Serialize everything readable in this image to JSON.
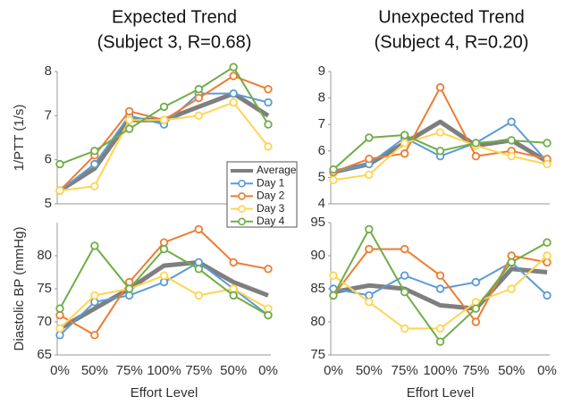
{
  "chart_data": [
    {
      "type": "line",
      "title": "Expected Trend",
      "subtitle": "(Subject 3, R=0.68)",
      "y_label": "1/PTT (1/s)",
      "ylim": [
        5,
        8
      ],
      "yticks": [
        5,
        6,
        7,
        8
      ],
      "legend": "lower right",
      "series": [
        {
          "name": "Average",
          "color": "#7f7f7f",
          "values": [
            5.3,
            5.8,
            6.9,
            6.9,
            7.2,
            7.5,
            7.0
          ]
        },
        {
          "name": "Day 1",
          "color": "#5b9bd5",
          "values": [
            5.3,
            5.9,
            7.0,
            6.8,
            7.5,
            7.5,
            7.3
          ]
        },
        {
          "name": "Day 2",
          "color": "#ed7d31",
          "values": [
            5.3,
            6.1,
            7.1,
            6.9,
            7.4,
            7.9,
            7.6
          ]
        },
        {
          "name": "Day 3",
          "color": "#ffd54f",
          "values": [
            5.3,
            5.4,
            6.9,
            6.9,
            7.0,
            7.3,
            6.3
          ]
        },
        {
          "name": "Day 4",
          "color": "#70ad47",
          "values": [
            5.9,
            6.2,
            6.7,
            7.2,
            7.6,
            8.1,
            6.8
          ]
        }
      ]
    },
    {
      "type": "line",
      "title": "Unexpected Trend",
      "subtitle": "(Subject 4, R=0.20)",
      "ylim": [
        4,
        9
      ],
      "yticks": [
        4,
        5,
        6,
        7,
        8,
        9
      ],
      "series": [
        {
          "color": "#7f7f7f",
          "values": [
            5.2,
            5.5,
            6.3,
            7.1,
            6.2,
            6.4,
            5.6
          ]
        },
        {
          "color": "#5b9bd5",
          "values": [
            5.2,
            5.5,
            6.5,
            5.8,
            6.3,
            7.1,
            5.6
          ]
        },
        {
          "color": "#ed7d31",
          "values": [
            5.2,
            5.7,
            5.9,
            8.4,
            5.8,
            6.0,
            5.7
          ]
        },
        {
          "color": "#ffd54f",
          "values": [
            4.9,
            5.1,
            6.3,
            6.7,
            6.2,
            5.8,
            5.5
          ]
        },
        {
          "color": "#70ad47",
          "values": [
            5.3,
            6.5,
            6.6,
            6.0,
            6.3,
            6.4,
            6.3
          ]
        }
      ]
    },
    {
      "type": "line",
      "y_label": "Diastolic BP (mmHg)",
      "x_label": "Effort Level",
      "categories": [
        "0%",
        "50%",
        "75%",
        "100%",
        "75%",
        "50%",
        "0%"
      ],
      "ylim": [
        65,
        85
      ],
      "yticks": [
        65,
        70,
        75,
        80
      ],
      "series": [
        {
          "color": "#7f7f7f",
          "values": [
            69,
            72,
            75,
            78.5,
            79,
            76,
            74
          ]
        },
        {
          "color": "#5b9bd5",
          "values": [
            68,
            73,
            74,
            76,
            79,
            75,
            71
          ]
        },
        {
          "color": "#ed7d31",
          "values": [
            71,
            68,
            76,
            82,
            84,
            79,
            78
          ]
        },
        {
          "color": "#ffd54f",
          "values": [
            69,
            74,
            75,
            77,
            74,
            75,
            72
          ]
        },
        {
          "color": "#70ad47",
          "values": [
            72,
            81.5,
            75,
            81,
            78,
            74,
            71
          ]
        }
      ]
    },
    {
      "type": "line",
      "x_label": "Effort Level",
      "categories": [
        "0%",
        "50%",
        "75%",
        "100%",
        "75%",
        "50%",
        "0%"
      ],
      "ylim": [
        75,
        95
      ],
      "yticks": [
        75,
        80,
        85,
        90,
        95
      ],
      "series": [
        {
          "color": "#7f7f7f",
          "values": [
            84.5,
            85.5,
            85,
            82.5,
            82,
            88,
            87.5
          ]
        },
        {
          "color": "#5b9bd5",
          "values": [
            85,
            84,
            87,
            85,
            86,
            89,
            84
          ]
        },
        {
          "color": "#ed7d31",
          "values": [
            84,
            91,
            91,
            87,
            80,
            90,
            89
          ]
        },
        {
          "color": "#ffd54f",
          "values": [
            87,
            83,
            79,
            79,
            83,
            85,
            90
          ]
        },
        {
          "color": "#70ad47",
          "values": [
            84,
            94,
            84.5,
            77,
            82,
            89,
            92
          ]
        }
      ]
    }
  ]
}
